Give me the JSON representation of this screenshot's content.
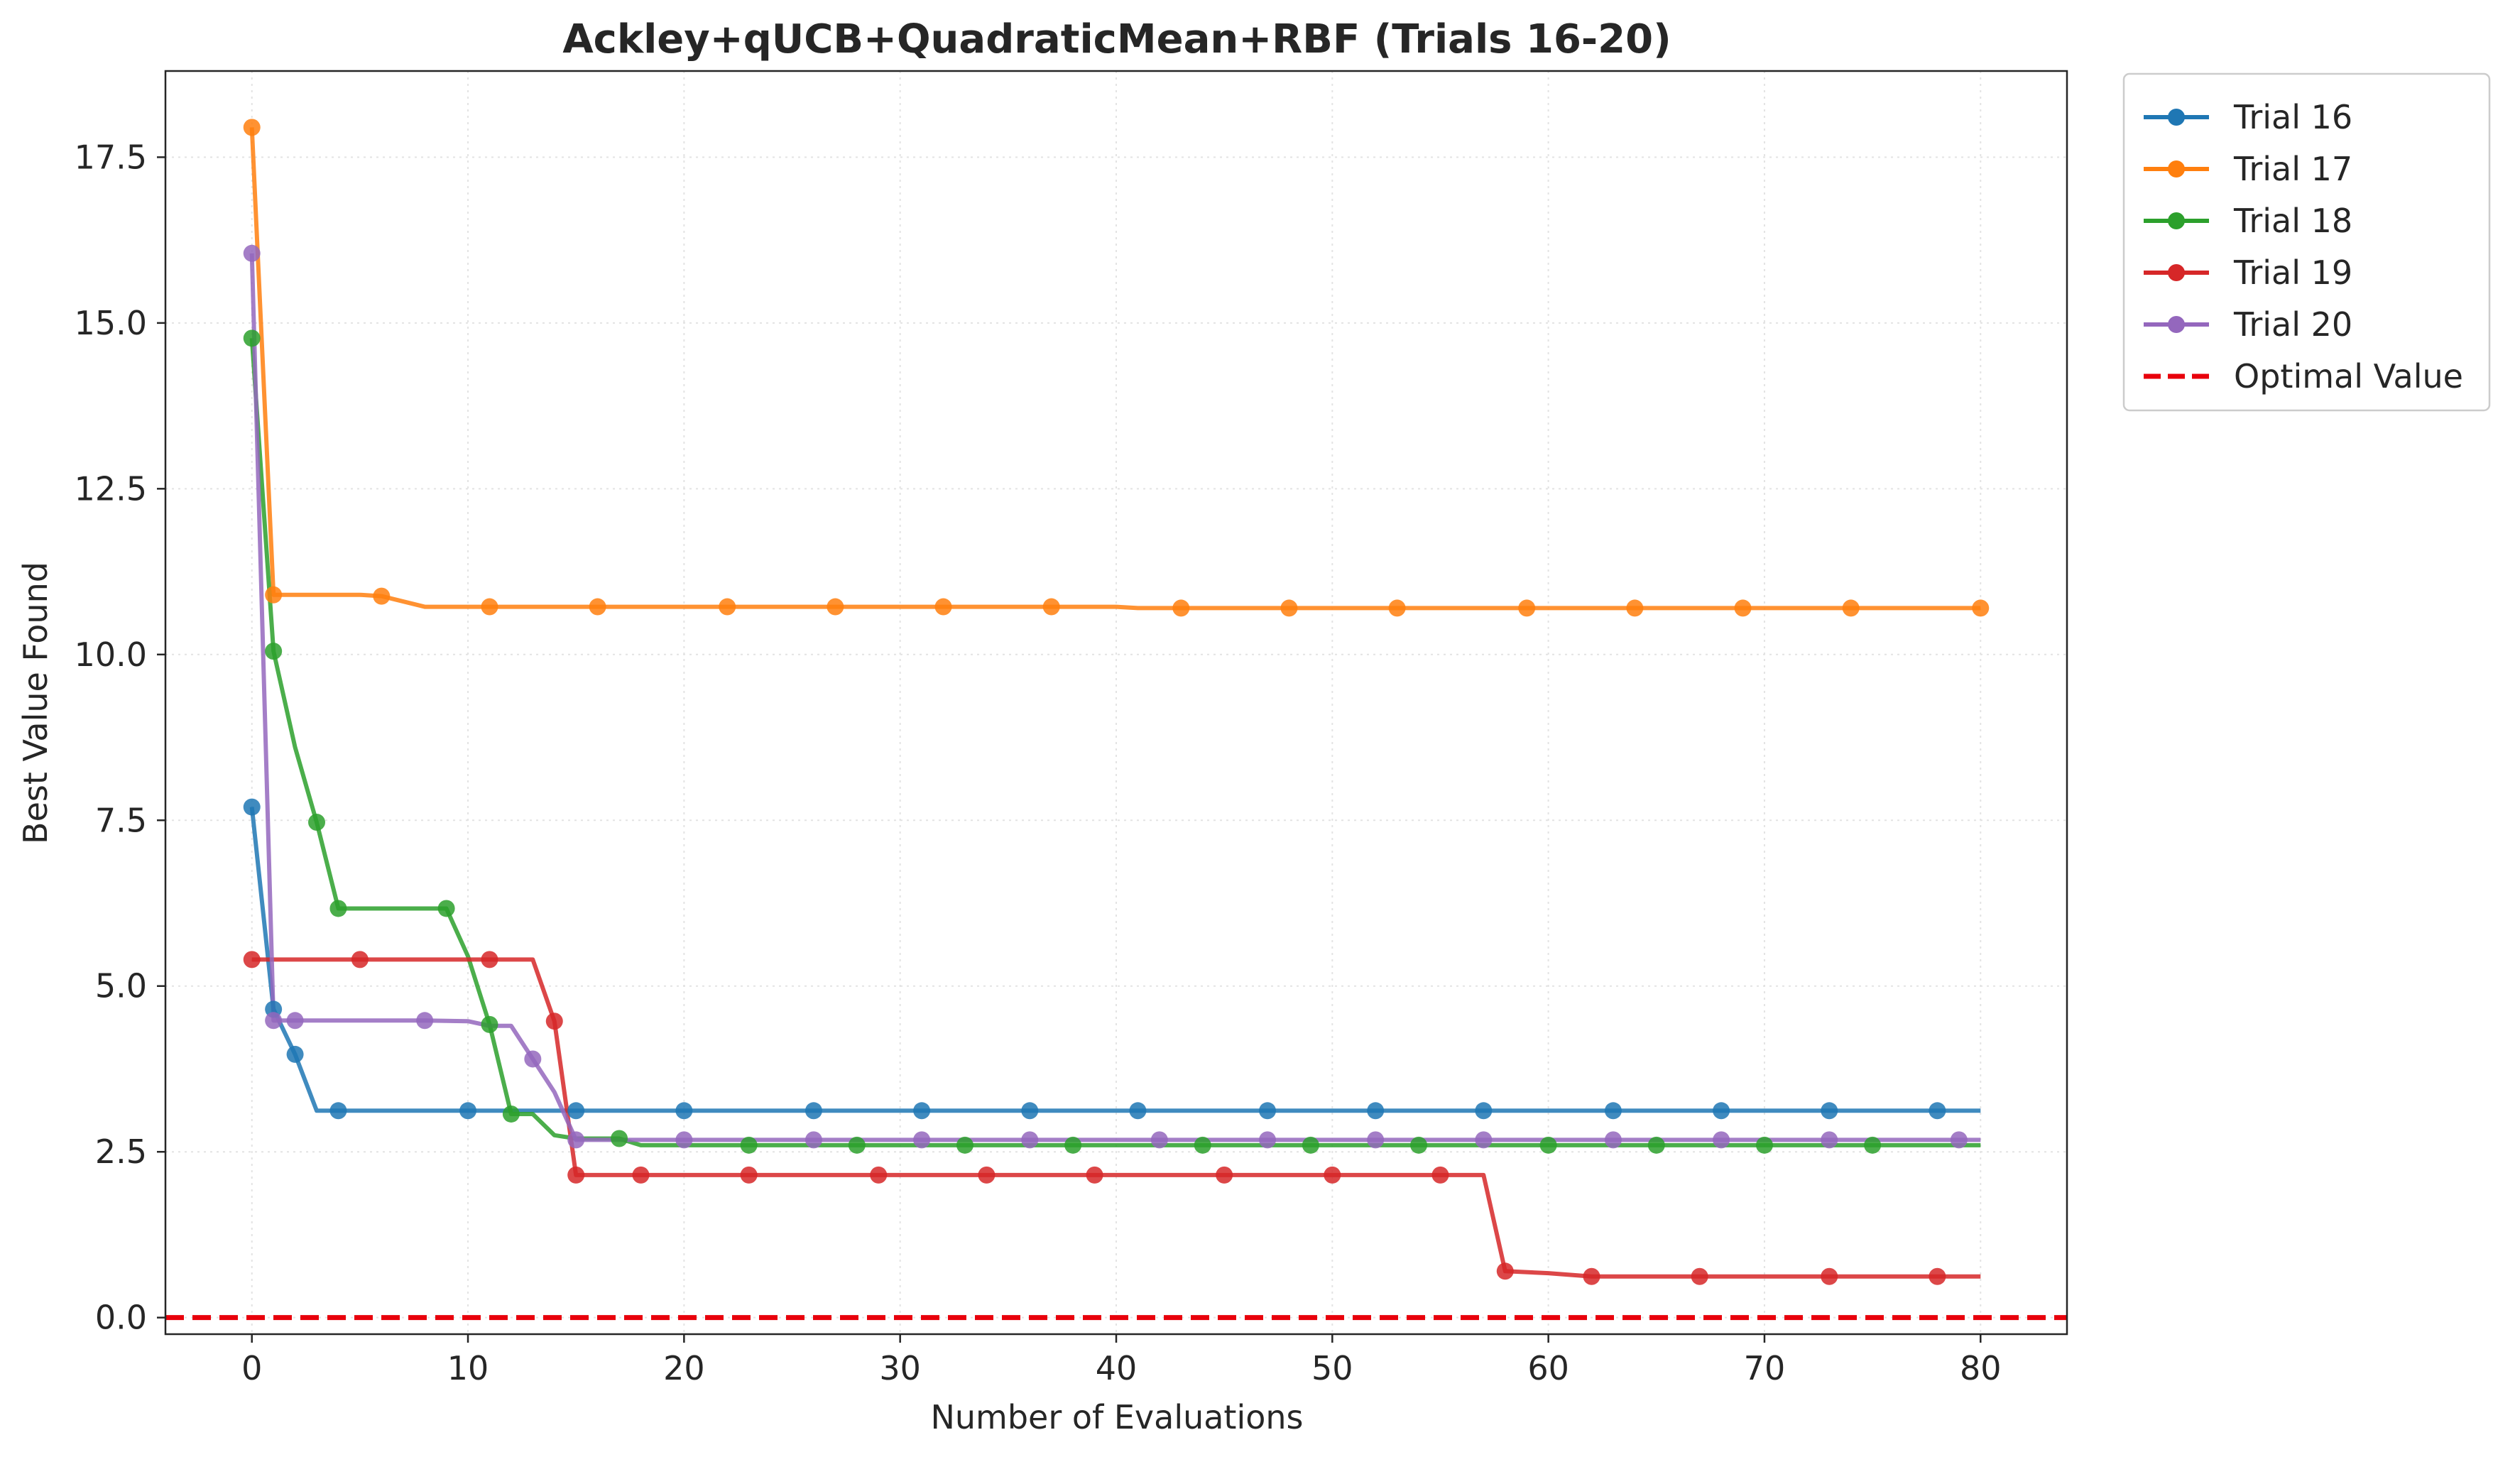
{
  "chart_data": {
    "type": "line",
    "title": "Ackley+qUCB+QuadraticMean+RBF (Trials 16-20)",
    "xlabel": "Number of Evaluations",
    "ylabel": "Best Value Found",
    "xlim": [
      -4,
      84
    ],
    "ylim": [
      -0.25,
      18.8
    ],
    "xticks": [
      0,
      10,
      20,
      30,
      40,
      50,
      60,
      70,
      80
    ],
    "yticks": [
      0.0,
      2.5,
      5.0,
      7.5,
      10.0,
      12.5,
      15.0,
      17.5
    ],
    "xtick_labels": [
      "0",
      "10",
      "20",
      "30",
      "40",
      "50",
      "60",
      "70",
      "80"
    ],
    "ytick_labels": [
      "0.0",
      "2.5",
      "5.0",
      "7.5",
      "10.0",
      "12.5",
      "15.0",
      "17.5"
    ],
    "grid": true,
    "legend_position": "outside-top-right",
    "series": [
      {
        "name": "Trial 16",
        "color": "#1f77b4",
        "x": [
          0,
          1,
          2,
          3,
          80
        ],
        "y": [
          7.7,
          4.65,
          3.97,
          3.12,
          3.12
        ],
        "marker_x": [
          0,
          1,
          2,
          4,
          10,
          15,
          20,
          26,
          31,
          36,
          41,
          47,
          52,
          57,
          63,
          68,
          73,
          78
        ],
        "marker_y": [
          7.7,
          4.65,
          3.97,
          3.12,
          3.12,
          3.12,
          3.12,
          3.12,
          3.12,
          3.12,
          3.12,
          3.12,
          3.12,
          3.12,
          3.12,
          3.12,
          3.12,
          3.12
        ]
      },
      {
        "name": "Trial 17",
        "color": "#ff7f0e",
        "x": [
          0,
          1,
          5,
          6,
          8,
          40,
          41,
          80
        ],
        "y": [
          17.95,
          10.9,
          10.9,
          10.88,
          10.72,
          10.72,
          10.7,
          10.7
        ],
        "marker_x": [
          0,
          1,
          6,
          11,
          16,
          22,
          27,
          32,
          37,
          43,
          48,
          53,
          59,
          64,
          69,
          74,
          80
        ],
        "marker_y": [
          17.95,
          10.9,
          10.88,
          10.72,
          10.72,
          10.72,
          10.72,
          10.72,
          10.72,
          10.7,
          10.7,
          10.7,
          10.7,
          10.7,
          10.7,
          10.7,
          10.7
        ]
      },
      {
        "name": "Trial 18",
        "color": "#2ca02c",
        "x": [
          0,
          1,
          2,
          3,
          4,
          9,
          10,
          11,
          12,
          13,
          14,
          15,
          17,
          18,
          80
        ],
        "y": [
          14.77,
          10.05,
          8.6,
          7.47,
          6.17,
          6.17,
          5.45,
          4.42,
          3.07,
          3.07,
          2.75,
          2.7,
          2.7,
          2.6,
          2.6
        ],
        "marker_x": [
          0,
          1,
          3,
          4,
          9,
          11,
          12,
          17,
          23,
          28,
          33,
          38,
          44,
          49,
          54,
          60,
          65,
          70,
          75
        ],
        "marker_y": [
          14.77,
          10.05,
          7.47,
          6.17,
          6.17,
          4.42,
          3.07,
          2.7,
          2.6,
          2.6,
          2.6,
          2.6,
          2.6,
          2.6,
          2.6,
          2.6,
          2.6,
          2.6,
          2.6
        ]
      },
      {
        "name": "Trial 19",
        "color": "#d62728",
        "x": [
          0,
          13,
          14,
          15,
          57,
          58,
          60,
          62,
          80
        ],
        "y": [
          5.4,
          5.4,
          4.47,
          2.15,
          2.15,
          0.7,
          0.67,
          0.62,
          0.62
        ],
        "marker_x": [
          0,
          5,
          11,
          14,
          15,
          18,
          23,
          29,
          34,
          39,
          45,
          50,
          55,
          58,
          62,
          67,
          73,
          78
        ],
        "marker_y": [
          5.4,
          5.4,
          5.4,
          4.47,
          2.15,
          2.15,
          2.15,
          2.15,
          2.15,
          2.15,
          2.15,
          2.15,
          2.15,
          0.7,
          0.62,
          0.62,
          0.62,
          0.62
        ]
      },
      {
        "name": "Trial 20",
        "color": "#9467bd",
        "x": [
          0,
          1,
          2,
          8,
          10,
          11,
          12,
          13,
          14,
          15,
          80
        ],
        "y": [
          16.05,
          4.48,
          4.48,
          4.48,
          4.47,
          4.4,
          4.4,
          3.9,
          3.4,
          2.68,
          2.68
        ],
        "marker_x": [
          0,
          1,
          2,
          8,
          13,
          15,
          20,
          26,
          31,
          36,
          42,
          47,
          52,
          57,
          63,
          68,
          73,
          79
        ],
        "marker_y": [
          16.05,
          4.48,
          4.48,
          4.48,
          3.9,
          2.68,
          2.68,
          2.68,
          2.68,
          2.68,
          2.68,
          2.68,
          2.68,
          2.68,
          2.68,
          2.68,
          2.68,
          2.68
        ]
      }
    ],
    "reference_line": {
      "name": "Optimal Value",
      "color": "#e8000b",
      "y": 0.0,
      "style": "dashed"
    }
  }
}
